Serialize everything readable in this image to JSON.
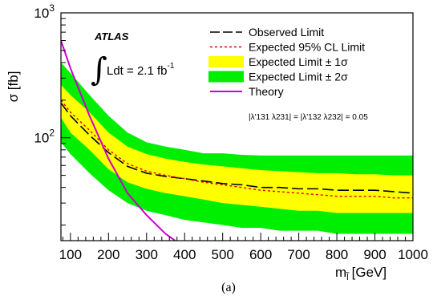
{
  "chart_data": {
    "type": "line",
    "brand": "ATLAS",
    "luminosity": "Ldt = 2.1 fb",
    "luminosity_exponent": "-1",
    "coupling_note": "|λ'131 λ231| = |λ'132 λ232| = 0.05",
    "xlabel": "m",
    "xlabel_unit": "[GeV]",
    "ylabel": "σ [fb]",
    "caption": "(a)",
    "xlim": [
      75,
      1000
    ],
    "ylim": [
      15,
      1000
    ],
    "yscale": "log",
    "x_ticks": [
      "100",
      "200",
      "300",
      "400",
      "500",
      "600",
      "700",
      "800",
      "900",
      "1000"
    ],
    "y_ticks": [
      {
        "base": "10",
        "exp": "2",
        "value": 100
      },
      {
        "base": "10",
        "exp": "3",
        "value": 1000
      }
    ],
    "legend": [
      {
        "label": "Observed Limit",
        "style": "long-dash",
        "color": "#000000"
      },
      {
        "label": "Expected 95% CL Limit",
        "style": "dotted",
        "color": "#e00000"
      },
      {
        "label": "Expected Limit ± 1σ",
        "style": "fill",
        "color": "#ffff00"
      },
      {
        "label": "Expected Limit ± 2σ",
        "style": "fill",
        "color": "#00ee00"
      },
      {
        "label": "Theory",
        "style": "line",
        "color": "#cc00cc"
      }
    ],
    "series": [
      {
        "name": "Observed Limit",
        "x": [
          75,
          100,
          150,
          200,
          250,
          300,
          350,
          400,
          450,
          500,
          550,
          600,
          650,
          700,
          750,
          800,
          850,
          900,
          950,
          1000
        ],
        "y": [
          190,
          150,
          105,
          76,
          59,
          52,
          49,
          47,
          45,
          43,
          42,
          40,
          40,
          39,
          39,
          38,
          38,
          38,
          37,
          36
        ]
      },
      {
        "name": "Expected 95% CL Limit",
        "x": [
          75,
          100,
          150,
          200,
          250,
          300,
          350,
          400,
          450,
          500,
          550,
          600,
          650,
          700,
          750,
          800,
          850,
          900,
          950,
          1000
        ],
        "y": [
          200,
          160,
          115,
          80,
          62,
          54,
          50,
          47,
          44,
          42,
          40,
          38,
          37,
          36,
          35,
          34,
          34,
          34,
          33,
          33
        ]
      },
      {
        "name": "Theory",
        "x": [
          75,
          100,
          150,
          200,
          250,
          300,
          350,
          375
        ],
        "y": [
          600,
          360,
          150,
          68,
          36,
          24,
          17,
          15
        ]
      }
    ],
    "bands": [
      {
        "name": "Expected Limit ± 2σ",
        "color": "#00ee00",
        "x": [
          75,
          100,
          150,
          200,
          250,
          300,
          350,
          400,
          450,
          500,
          550,
          600,
          650,
          700,
          750,
          800,
          850,
          900,
          950,
          1000
        ],
        "lower": [
          92,
          74,
          52,
          38,
          30,
          26,
          24,
          22,
          21,
          20,
          19,
          19,
          18,
          18,
          18,
          17,
          17,
          17,
          17,
          17
        ],
        "upper": [
          400,
          330,
          220,
          150,
          110,
          92,
          85,
          80,
          75,
          75,
          73,
          72,
          72,
          72,
          72,
          72,
          72,
          72,
          72,
          72
        ]
      },
      {
        "name": "Expected Limit ± 1σ",
        "color": "#ffff00",
        "x": [
          75,
          100,
          150,
          200,
          250,
          300,
          350,
          400,
          450,
          500,
          550,
          600,
          650,
          700,
          750,
          800,
          850,
          900,
          950,
          1000
        ],
        "lower": [
          145,
          110,
          80,
          56,
          44,
          39,
          36,
          34,
          32,
          30,
          29,
          28,
          27,
          26,
          26,
          25,
          25,
          25,
          25,
          25
        ],
        "upper": [
          265,
          220,
          160,
          110,
          85,
          74,
          68,
          64,
          61,
          59,
          57,
          55,
          54,
          53,
          52,
          52,
          51,
          51,
          50,
          50
        ]
      }
    ]
  }
}
